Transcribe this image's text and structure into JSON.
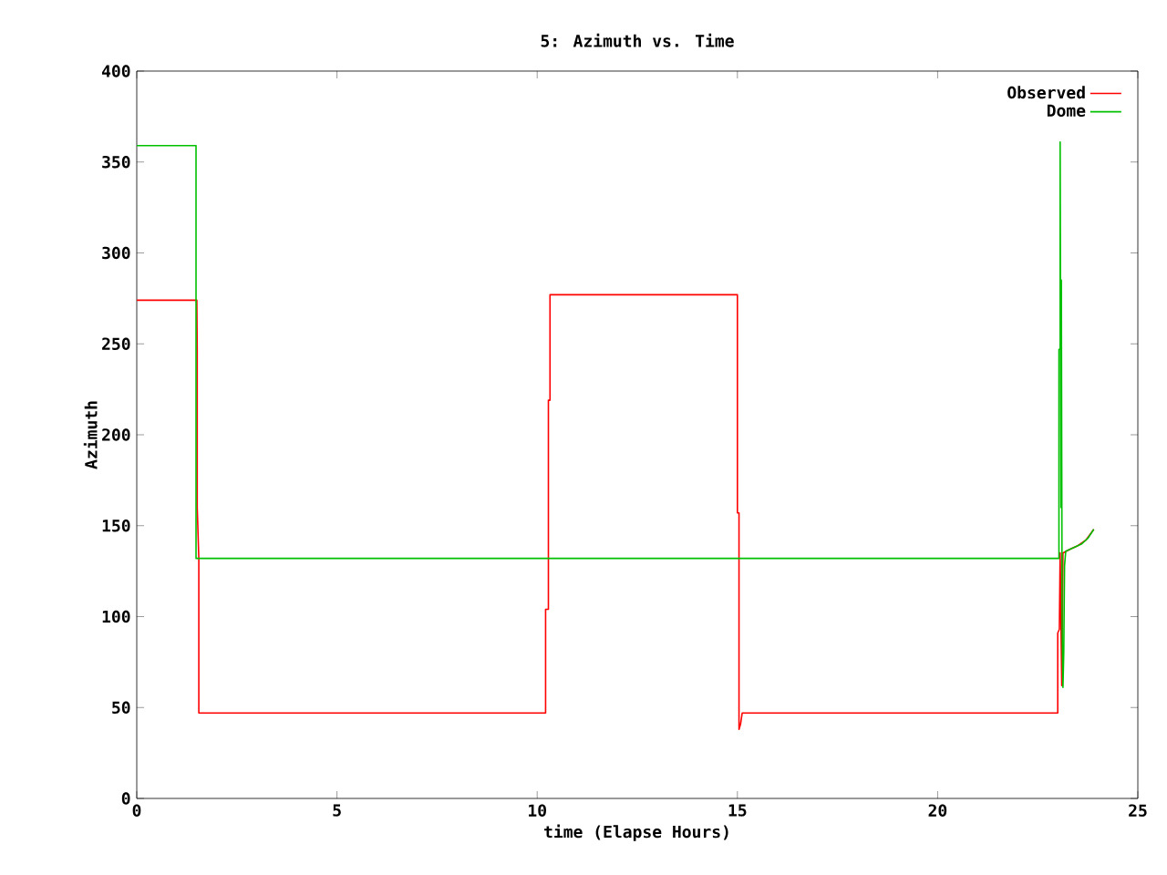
{
  "chart_data": {
    "type": "line",
    "title": "5: Azimuth vs. Time",
    "xlabel": "time (Elapse Hours)",
    "ylabel": "Azimuth",
    "xlim": [
      0,
      25
    ],
    "ylim": [
      0,
      400
    ],
    "xticks": [
      0,
      5,
      10,
      15,
      20,
      25
    ],
    "yticks": [
      0,
      50,
      100,
      150,
      200,
      250,
      300,
      350,
      400
    ],
    "legend": "top right",
    "marker": "none",
    "line_style": "solid",
    "series": [
      {
        "name": "Observed",
        "color": "#ff0000",
        "x": [
          0,
          1.5,
          1.51,
          1.51,
          1.55,
          1.55,
          10.21,
          10.21,
          10.28,
          10.28,
          10.32,
          10.32,
          15.0,
          15.0,
          15.04,
          15.04,
          15.08,
          15.12,
          23.0,
          23.0,
          23.04,
          23.06,
          23.1,
          23.13,
          23.3,
          23.5,
          23.7,
          23.8,
          23.9
        ],
        "values": [
          274,
          274,
          246,
          160,
          132,
          47,
          47,
          104,
          104,
          219,
          219,
          277,
          277,
          157,
          157,
          38,
          41,
          47,
          47,
          91,
          93,
          135,
          62,
          135,
          137,
          139,
          142,
          145,
          148
        ]
      },
      {
        "name": "Dome",
        "color": "#00c000",
        "x": [
          0,
          1.48,
          1.48,
          23.03,
          23.03,
          23.06,
          23.06,
          23.08,
          23.09,
          23.11,
          23.13,
          23.15,
          23.17,
          23.2,
          23.4,
          23.6,
          23.75,
          23.9
        ],
        "values": [
          359,
          359,
          132,
          132,
          247,
          247,
          361,
          160,
          285,
          93,
          61,
          80,
          128,
          136,
          138,
          140,
          143,
          148
        ]
      }
    ]
  }
}
